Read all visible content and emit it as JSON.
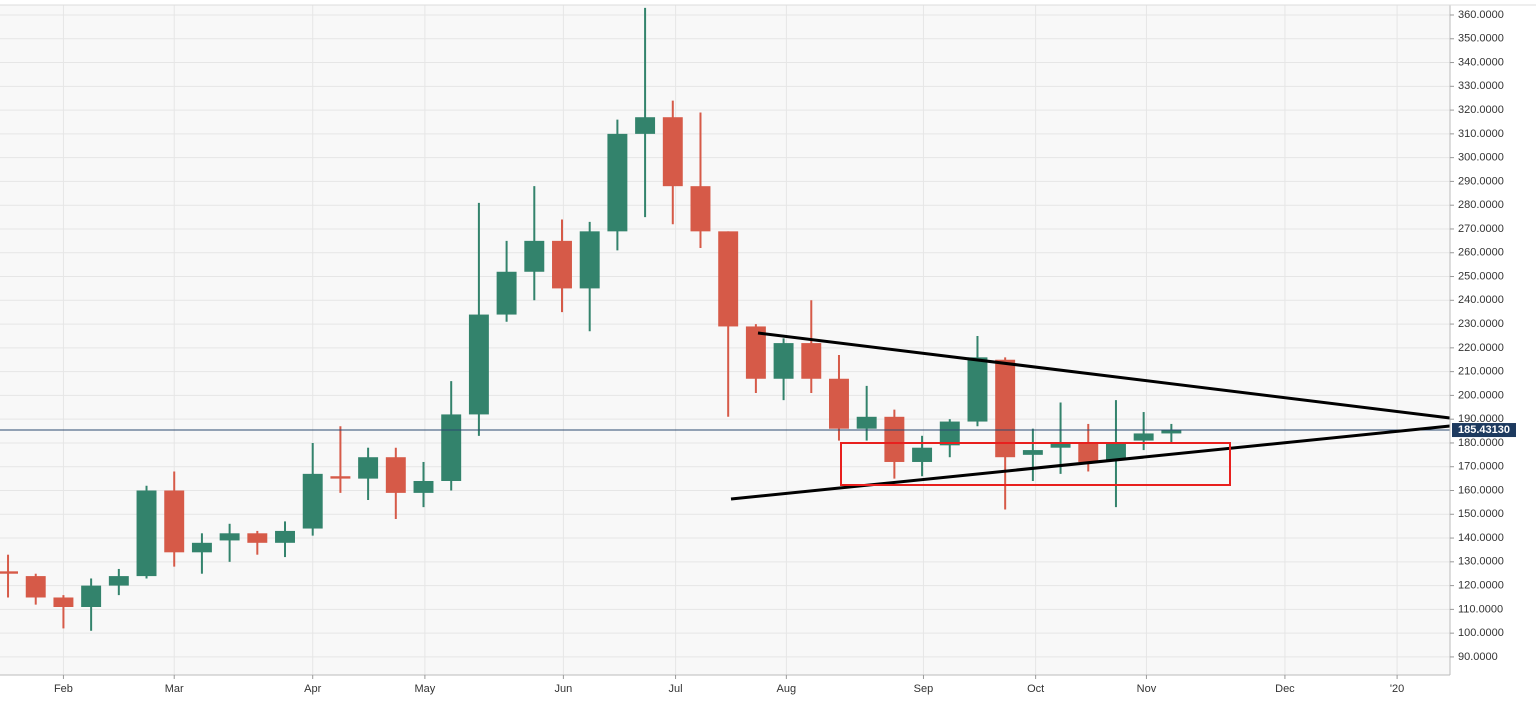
{
  "chart_data": {
    "type": "candlestick",
    "x": [
      0,
      1,
      2,
      3,
      4,
      5,
      6,
      7,
      8,
      9,
      10,
      11,
      12,
      13,
      14,
      15,
      16,
      17,
      18,
      19,
      20,
      21,
      22,
      23,
      24,
      25,
      26,
      27,
      28,
      29,
      30,
      31,
      32,
      33,
      34,
      35,
      36,
      37,
      38,
      39,
      40,
      41,
      42
    ],
    "open": [
      126,
      124,
      115,
      111,
      120,
      124,
      160,
      134,
      139,
      142,
      138,
      144,
      166,
      165,
      174,
      159,
      164,
      192,
      234,
      252,
      265,
      245,
      269,
      310,
      317,
      288,
      269,
      229,
      207,
      222,
      207,
      186,
      191,
      172,
      179,
      189,
      215,
      175,
      178,
      180,
      173,
      181,
      184
    ],
    "high": [
      133,
      125,
      116,
      123,
      127,
      162,
      168,
      142,
      146,
      143,
      147,
      180,
      187,
      178,
      178,
      172,
      206,
      281,
      265,
      288,
      274,
      273,
      316,
      363,
      324,
      319,
      269,
      230,
      224,
      240,
      217,
      204,
      194,
      183,
      190,
      225,
      216,
      186,
      197,
      188,
      198,
      193,
      188
    ],
    "low": [
      115,
      112,
      102,
      101,
      116,
      123,
      128,
      125,
      130,
      133,
      132,
      141,
      159,
      156,
      148,
      153,
      160,
      183,
      231,
      240,
      235,
      227,
      261,
      275,
      272,
      262,
      191,
      201,
      198,
      201,
      181,
      181,
      165,
      166,
      174,
      187,
      152,
      164,
      167,
      168,
      153,
      177,
      180
    ],
    "close": [
      125,
      115,
      111,
      120,
      124,
      160,
      134,
      138,
      142,
      138,
      143,
      167,
      165,
      174,
      159,
      164,
      192,
      234,
      252,
      265,
      245,
      269,
      310,
      317,
      288,
      269,
      229,
      207,
      222,
      207,
      186,
      191,
      172,
      178,
      189,
      216,
      174,
      177,
      180,
      172,
      180,
      184,
      185.4
    ],
    "up_color": "#33836c",
    "down_color": "#d65a48",
    "last_price": {
      "value": 185.4313,
      "label": "185.43130"
    },
    "xlim": [
      -0.29,
      52.06
    ],
    "xticks": [
      {
        "value": 2,
        "label": "Feb"
      },
      {
        "value": 6,
        "label": "Mar"
      },
      {
        "value": 11,
        "label": "Apr"
      },
      {
        "value": 15.05,
        "label": "May"
      },
      {
        "value": 20.05,
        "label": "Jun"
      },
      {
        "value": 24.1,
        "label": "Jul"
      },
      {
        "value": 28.1,
        "label": "Aug"
      },
      {
        "value": 33.05,
        "label": "Sep"
      },
      {
        "value": 37.1,
        "label": "Oct"
      },
      {
        "value": 41.1,
        "label": "Nov"
      },
      {
        "value": 46.1,
        "label": "Dec"
      },
      {
        "value": 50.15,
        "label": "'20"
      }
    ],
    "ylim": [
      82.4,
      364.2
    ],
    "yticks": [
      {
        "value": 90,
        "label": "90.0000"
      },
      {
        "value": 100,
        "label": "100.0000"
      },
      {
        "value": 110,
        "label": "110.0000"
      },
      {
        "value": 120,
        "label": "120.0000"
      },
      {
        "value": 130,
        "label": "130.0000"
      },
      {
        "value": 140,
        "label": "140.0000"
      },
      {
        "value": 150,
        "label": "150.0000"
      },
      {
        "value": 160,
        "label": "160.0000"
      },
      {
        "value": 170,
        "label": "170.0000"
      },
      {
        "value": 180,
        "label": "180.0000"
      },
      {
        "value": 190,
        "label": "190.0000"
      },
      {
        "value": 200,
        "label": "200.0000"
      },
      {
        "value": 210,
        "label": "210.0000"
      },
      {
        "value": 220,
        "label": "220.0000"
      },
      {
        "value": 230,
        "label": "230.0000"
      },
      {
        "value": 240,
        "label": "240.0000"
      },
      {
        "value": 250,
        "label": "250.0000"
      },
      {
        "value": 260,
        "label": "260.0000"
      },
      {
        "value": 270,
        "label": "270.0000"
      },
      {
        "value": 280,
        "label": "280.0000"
      },
      {
        "value": 290,
        "label": "290.0000"
      },
      {
        "value": 300,
        "label": "300.0000"
      },
      {
        "value": 310,
        "label": "310.0000"
      },
      {
        "value": 320,
        "label": "320.0000"
      },
      {
        "value": 330,
        "label": "330.0000"
      },
      {
        "value": 340,
        "label": "340.0000"
      },
      {
        "value": 350,
        "label": "350.0000"
      },
      {
        "value": 360,
        "label": "360.0000"
      }
    ],
    "grid": true
  }
}
